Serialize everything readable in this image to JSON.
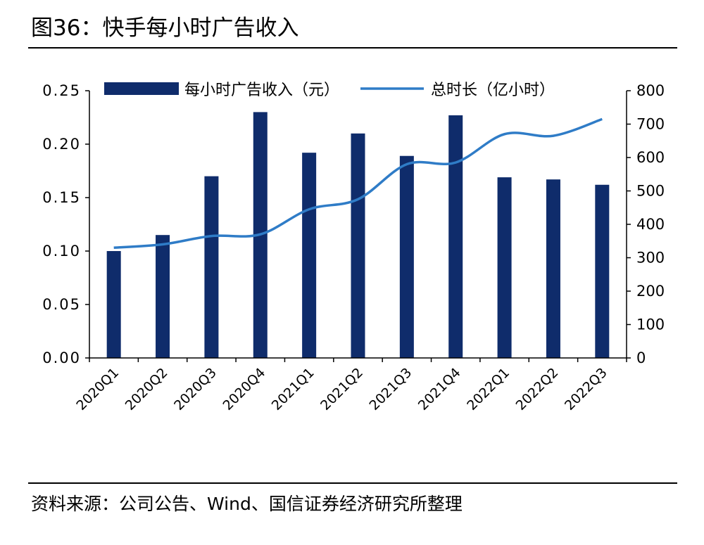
{
  "figure": {
    "title": "图36：快手每小时广告收入",
    "source": "资料来源：公司公告、Wind、国信证券经济研究所整理"
  },
  "colors": {
    "bar": "#0f2c6b",
    "line": "#2f7cc7",
    "axis": "#000000"
  },
  "chart_data": {
    "type": "bar",
    "categories": [
      "2020Q1",
      "2020Q2",
      "2020Q3",
      "2020Q4",
      "2021Q1",
      "2021Q2",
      "2021Q3",
      "2021Q4",
      "2022Q1",
      "2022Q2",
      "2022Q3"
    ],
    "series": [
      {
        "name": "每小时广告收入（元）",
        "type": "bar",
        "axis": "left",
        "values": [
          0.1,
          0.115,
          0.17,
          0.23,
          0.192,
          0.21,
          0.189,
          0.227,
          0.169,
          0.167,
          0.162
        ]
      },
      {
        "name": "总时长（亿小时）",
        "type": "line",
        "axis": "right",
        "values": [
          330,
          340,
          365,
          370,
          445,
          475,
          580,
          585,
          670,
          665,
          715
        ]
      }
    ],
    "y_left": {
      "lim": [
        0,
        0.25
      ],
      "ticks": [
        "0.00",
        "0.05",
        "0.10",
        "0.15",
        "0.20",
        "0.25"
      ]
    },
    "y_right": {
      "lim": [
        0,
        800
      ],
      "ticks": [
        "0",
        "100",
        "200",
        "300",
        "400",
        "500",
        "600",
        "700",
        "800"
      ]
    },
    "grid": false,
    "legend": "top"
  }
}
